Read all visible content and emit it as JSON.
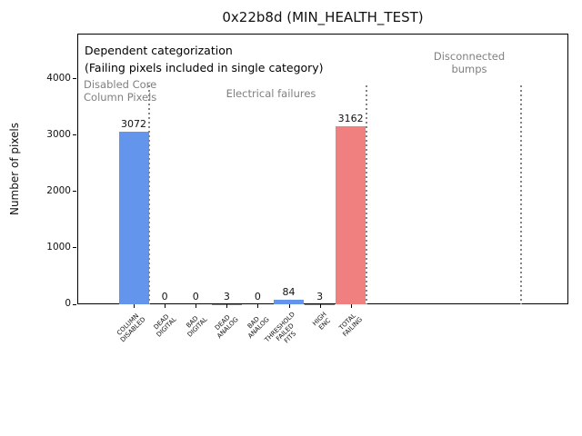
{
  "chart_data": {
    "type": "bar",
    "title": "0x22b8d (MIN_HEALTH_TEST)",
    "ylabel": "Number of pixels",
    "xlabel": "",
    "categories": [
      "COLUMN\nDISABLED",
      "DEAD\nDIGITAL",
      "BAD\nDIGITAL",
      "DEAD\nANALOG",
      "BAD\nANALOG",
      "THRESHOLD\nFAILED\nFITS",
      "HIGH\nENC",
      "TOTAL\nFAILING"
    ],
    "values": [
      3072,
      0,
      0,
      3,
      0,
      84,
      3,
      3162
    ],
    "bar_value_labels": [
      "3072",
      "0",
      "0",
      "3",
      "0",
      "84",
      "3",
      "3162"
    ],
    "bar_colors": [
      "#6495ed",
      "#6495ed",
      "#6495ed",
      "#6495ed",
      "#6495ed",
      "#6495ed",
      "#6495ed",
      "#f08080"
    ],
    "yticks": [
      0,
      1000,
      2000,
      3000,
      4000
    ],
    "ytick_labels": [
      "0",
      "1000",
      "2000",
      "3000",
      "4000"
    ],
    "ylim": [
      0,
      4806
    ],
    "xlim": [
      -1.82,
      14.02
    ],
    "grid": false,
    "legend": null,
    "annotation_lines": [
      "Dependent categorization",
      "(Failing pixels included in single category)"
    ],
    "section_labels": [
      "Disabled Core\nColumn Pixels",
      "Electrical failures",
      "Disconnected\nbumps"
    ],
    "divider_x_categories": [
      0.5,
      7.5,
      12.5
    ],
    "colors": {
      "bar_blue": "#6495ed",
      "bar_red": "#f08080",
      "section_text": "#808080",
      "divider_line": "#848484",
      "axis": "#000000"
    }
  }
}
